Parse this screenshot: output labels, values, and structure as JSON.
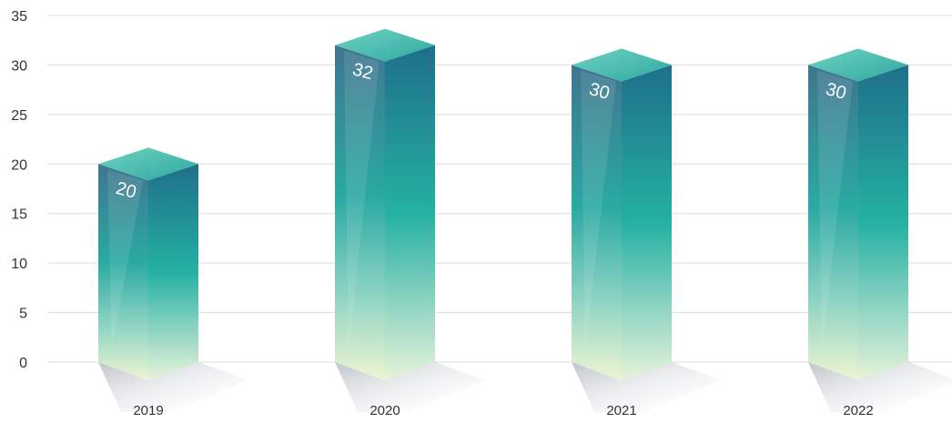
{
  "chart_data": {
    "type": "bar",
    "style": "3d-prism",
    "categories": [
      "2019",
      "2020",
      "2021",
      "2022"
    ],
    "values": [
      20,
      32,
      30,
      30
    ],
    "data_labels": [
      "20",
      "32",
      "30",
      "30"
    ],
    "ylim": [
      0,
      35
    ],
    "yticks": [
      0,
      5,
      10,
      15,
      20,
      25,
      30,
      35
    ],
    "grid": true,
    "title": "",
    "xlabel": "",
    "ylabel": "",
    "colors": {
      "top_face": "#4cc0b0",
      "front_dark": "#3f7590",
      "front_mid": "#2ab3a6",
      "front_light": "#eef5d2",
      "side_dark": "#1f6f8a",
      "side_mid": "#24b1a2",
      "side_light": "#e6f3d8",
      "grid": "#dcdcdc",
      "shadow": "#9aa3ad"
    }
  }
}
